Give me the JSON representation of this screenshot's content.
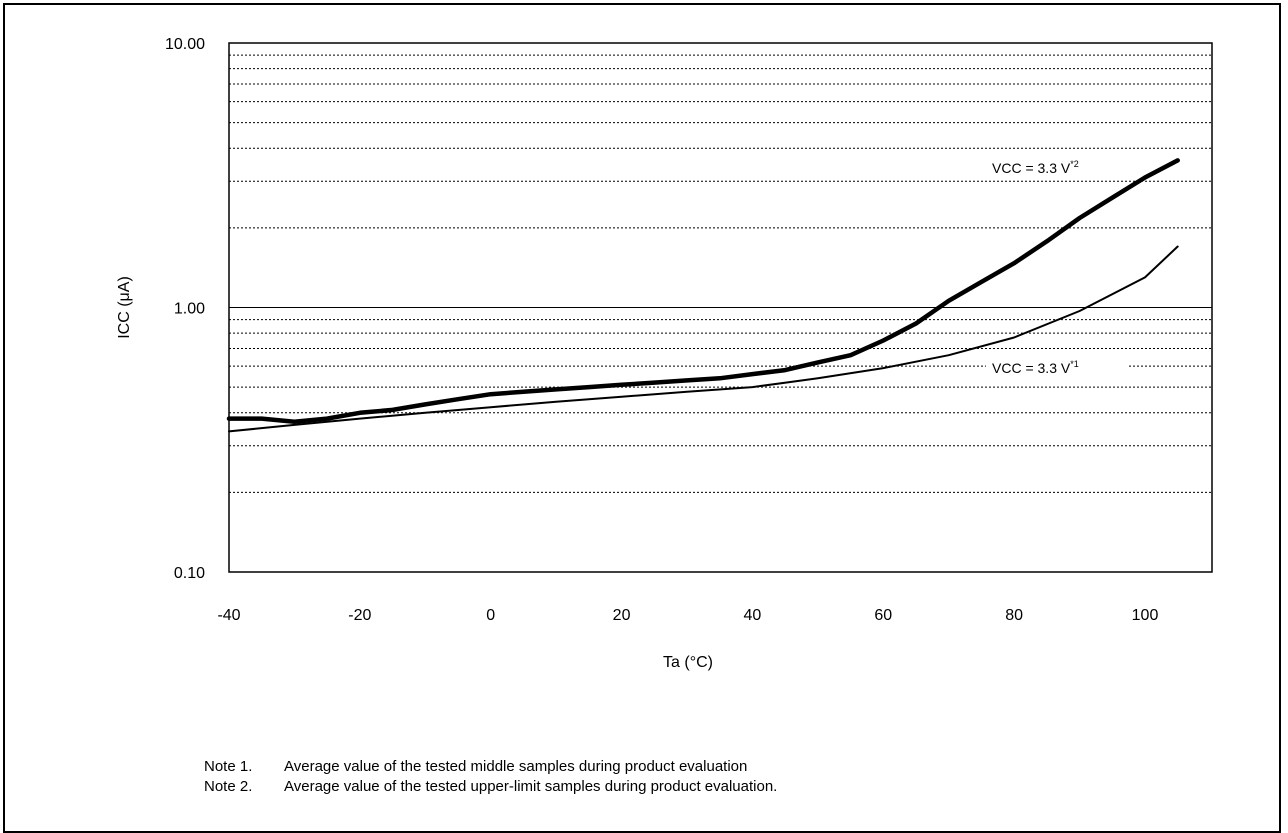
{
  "chart_data": {
    "type": "line",
    "xlabel": "Ta (°C)",
    "ylabel": "ICC (μA)",
    "xlim": [
      -40,
      100
    ],
    "x_ticks": [
      -40,
      -20,
      0,
      20,
      40,
      60,
      80,
      100
    ],
    "x_tick_labels": [
      "-40",
      "-20",
      "0",
      "20",
      "40",
      "60",
      "80",
      "100"
    ],
    "yscale": "log",
    "ylim": [
      0.1,
      10
    ],
    "y_ticks": [
      0.1,
      1,
      10
    ],
    "y_tick_labels": [
      "0.10",
      "1.00",
      "10.00"
    ],
    "minor_grid": "dotted",
    "series": [
      {
        "name": "VCC = 3.3 V*1",
        "label_main": "VCC = 3.3 V",
        "label_sup": "*1",
        "line": "thin",
        "x": [
          -40,
          -30,
          -20,
          -10,
          0,
          10,
          20,
          30,
          40,
          50,
          60,
          70,
          80,
          90,
          100,
          105
        ],
        "y": [
          0.34,
          0.36,
          0.38,
          0.4,
          0.42,
          0.44,
          0.46,
          0.48,
          0.5,
          0.54,
          0.59,
          0.66,
          0.77,
          0.97,
          1.3,
          1.7
        ]
      },
      {
        "name": "VCC = 3.3 V*2",
        "label_main": "VCC = 3.3 V",
        "label_sup": "*2",
        "line": "thick",
        "x": [
          -40,
          -35,
          -30,
          -25,
          -20,
          -15,
          -10,
          -5,
          0,
          5,
          10,
          15,
          20,
          25,
          30,
          35,
          40,
          45,
          50,
          55,
          60,
          65,
          70,
          75,
          80,
          85,
          90,
          95,
          100,
          105
        ],
        "y": [
          0.38,
          0.38,
          0.37,
          0.38,
          0.4,
          0.41,
          0.43,
          0.45,
          0.47,
          0.48,
          0.49,
          0.5,
          0.51,
          0.52,
          0.53,
          0.54,
          0.56,
          0.58,
          0.62,
          0.66,
          0.75,
          0.87,
          1.06,
          1.25,
          1.47,
          1.78,
          2.18,
          2.6,
          3.1,
          3.6
        ]
      }
    ]
  },
  "notes": [
    {
      "label": "Note 1.",
      "text": "Average value of the tested middle samples during product evaluation"
    },
    {
      "label": "Note 2.",
      "text": "Average value of the tested upper-limit samples during product evaluation."
    }
  ]
}
